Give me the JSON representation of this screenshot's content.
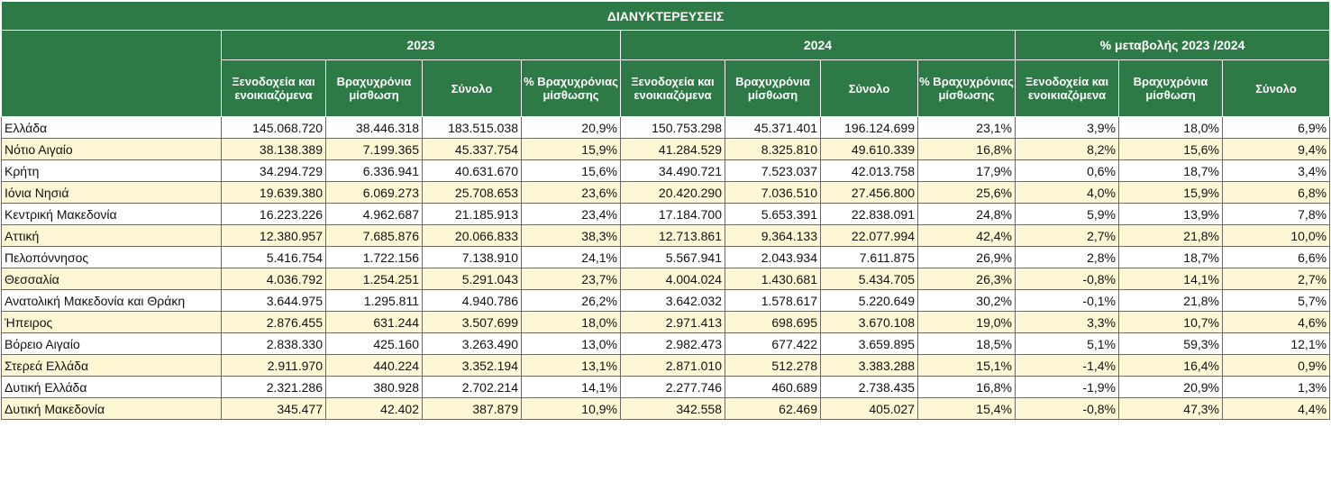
{
  "title": "ΔΙΑΝΥΚΤΕΡΕΥΣΕΙΣ",
  "groups": {
    "y2023": "2023",
    "y2024": "2024",
    "change": "% μεταβολής 2023 /2024"
  },
  "columns": {
    "hotels": "Ξενοδοχεία και ενοικιαζόμενα",
    "short_term": "Βραχυχρόνια μίσθωση",
    "total": "Σύνολο",
    "pct_short_term": "% Βραχυχρόνιας μίσθωσης"
  },
  "rows": [
    {
      "region": "Ελλάδα",
      "v": [
        "145.068.720",
        "38.446.318",
        "183.515.038",
        "20,9%",
        "150.753.298",
        "45.371.401",
        "196.124.699",
        "23,1%",
        "3,9%",
        "18,0%",
        "6,9%"
      ]
    },
    {
      "region": "Νότιο Αιγαίο",
      "v": [
        "38.138.389",
        "7.199.365",
        "45.337.754",
        "15,9%",
        "41.284.529",
        "8.325.810",
        "49.610.339",
        "16,8%",
        "8,2%",
        "15,6%",
        "9,4%"
      ]
    },
    {
      "region": "Κρήτη",
      "v": [
        "34.294.729",
        "6.336.941",
        "40.631.670",
        "15,6%",
        "34.490.721",
        "7.523.037",
        "42.013.758",
        "17,9%",
        "0,6%",
        "18,7%",
        "3,4%"
      ]
    },
    {
      "region": "Ιόνια Νησιά",
      "v": [
        "19.639.380",
        "6.069.273",
        "25.708.653",
        "23,6%",
        "20.420.290",
        "7.036.510",
        "27.456.800",
        "25,6%",
        "4,0%",
        "15,9%",
        "6,8%"
      ]
    },
    {
      "region": "Κεντρική Μακεδονία",
      "v": [
        "16.223.226",
        "4.962.687",
        "21.185.913",
        "23,4%",
        "17.184.700",
        "5.653.391",
        "22.838.091",
        "24,8%",
        "5,9%",
        "13,9%",
        "7,8%"
      ]
    },
    {
      "region": "Αττική",
      "v": [
        "12.380.957",
        "7.685.876",
        "20.066.833",
        "38,3%",
        "12.713.861",
        "9.364.133",
        "22.077.994",
        "42,4%",
        "2,7%",
        "21,8%",
        "10,0%"
      ]
    },
    {
      "region": "Πελοπόννησος",
      "v": [
        "5.416.754",
        "1.722.156",
        "7.138.910",
        "24,1%",
        "5.567.941",
        "2.043.934",
        "7.611.875",
        "26,9%",
        "2,8%",
        "18,7%",
        "6,6%"
      ]
    },
    {
      "region": "Θεσσαλία",
      "v": [
        "4.036.792",
        "1.254.251",
        "5.291.043",
        "23,7%",
        "4.004.024",
        "1.430.681",
        "5.434.705",
        "26,3%",
        "-0,8%",
        "14,1%",
        "2,7%"
      ]
    },
    {
      "region": "Ανατολική Μακεδονία και Θράκη",
      "v": [
        "3.644.975",
        "1.295.811",
        "4.940.786",
        "26,2%",
        "3.642.032",
        "1.578.617",
        "5.220.649",
        "30,2%",
        "-0,1%",
        "21,8%",
        "5,7%"
      ]
    },
    {
      "region": "Ήπειρος",
      "v": [
        "2.876.455",
        "631.244",
        "3.507.699",
        "18,0%",
        "2.971.413",
        "698.695",
        "3.670.108",
        "19,0%",
        "3,3%",
        "10,7%",
        "4,6%"
      ]
    },
    {
      "region": "Βόρειο Αιγαίο",
      "v": [
        "2.838.330",
        "425.160",
        "3.263.490",
        "13,0%",
        "2.982.473",
        "677.422",
        "3.659.895",
        "18,5%",
        "5,1%",
        "59,3%",
        "12,1%"
      ]
    },
    {
      "region": "Στερεά Ελλάδα",
      "v": [
        "2.911.970",
        "440.224",
        "3.352.194",
        "13,1%",
        "2.871.010",
        "512.278",
        "3.383.288",
        "15,1%",
        "-1,4%",
        "16,4%",
        "0,9%"
      ]
    },
    {
      "region": "Δυτική Ελλάδα",
      "v": [
        "2.321.286",
        "380.928",
        "2.702.214",
        "14,1%",
        "2.277.746",
        "460.689",
        "2.738.435",
        "16,8%",
        "-1,9%",
        "20,9%",
        "1,3%"
      ]
    },
    {
      "region": "Δυτική Μακεδονία",
      "v": [
        "345.477",
        "42.402",
        "387.879",
        "10,9%",
        "342.558",
        "62.469",
        "405.027",
        "15,4%",
        "-0,8%",
        "47,3%",
        "4,4%"
      ]
    }
  ],
  "colors": {
    "header_green": "#2e7a47",
    "alt_row": "#fdf7d4",
    "border": "#6a6a6a"
  }
}
